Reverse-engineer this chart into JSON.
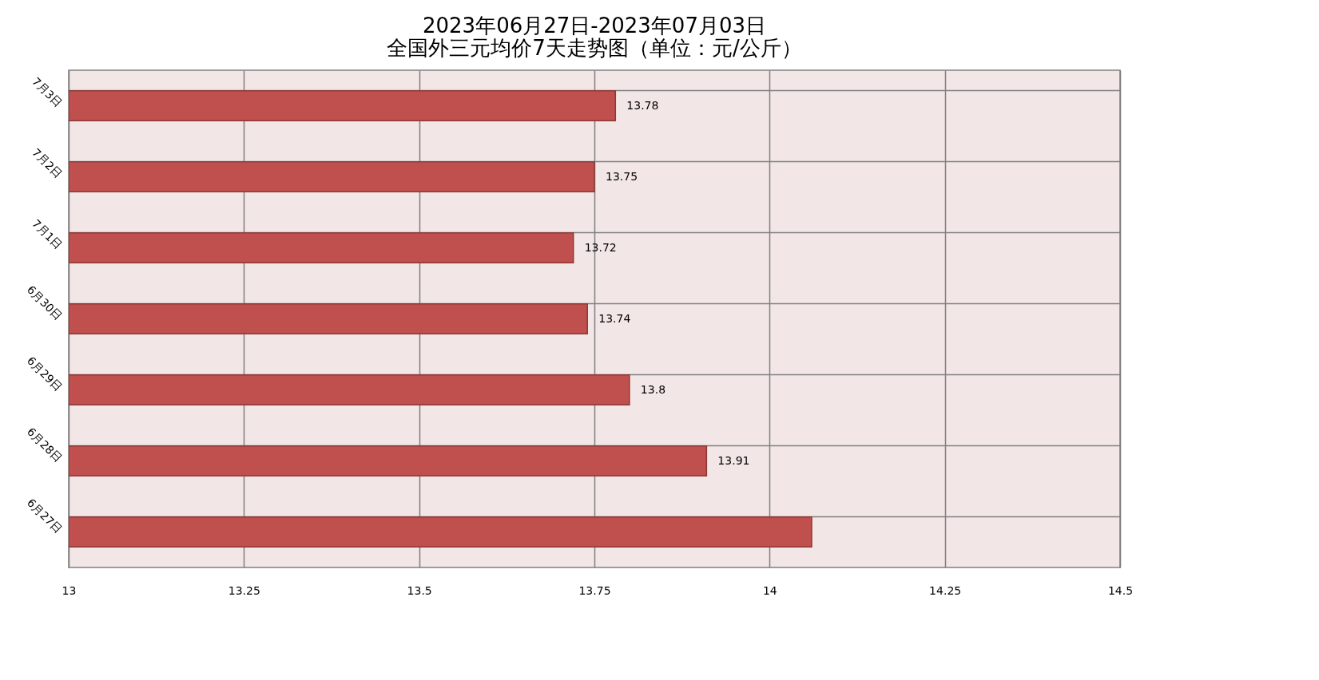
{
  "chart_data": {
    "type": "bar",
    "orientation": "horizontal",
    "title": [
      "2023年06月27日-2023年07月03日",
      "全国外三元均价7天走势图（单位：元/公斤）"
    ],
    "categories": [
      "7月3日",
      "7月2日",
      "7月1日",
      "6月30日",
      "6月29日",
      "6月28日",
      "6月27日"
    ],
    "values": [
      13.78,
      13.75,
      13.72,
      13.74,
      13.8,
      13.91,
      14.06
    ],
    "value_labels": [
      "13.78",
      "13.75",
      "13.72",
      "13.74",
      "13.8",
      "13.91",
      null
    ],
    "color": "#c0504d",
    "xlim": [
      13,
      14.5
    ],
    "xticks": [
      13,
      13.25,
      13.5,
      13.75,
      14,
      14.25,
      14.5
    ],
    "grid": true
  }
}
